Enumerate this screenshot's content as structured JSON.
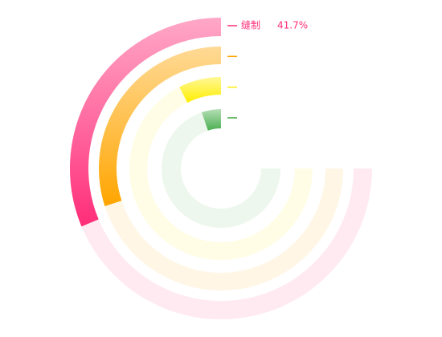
{
  "chart_data": {
    "type": "radial-bar",
    "xlim": [
      0,
      100
    ],
    "categories": [
      "缝制",
      null,
      null,
      null
    ],
    "values": [
      41.7,
      40,
      10,
      7
    ],
    "value_labels": [
      "41.7%",
      null,
      null,
      null
    ],
    "colors": [
      "#ff2d78",
      "#ffa500",
      "#ffee00",
      "#4caf50"
    ]
  }
}
